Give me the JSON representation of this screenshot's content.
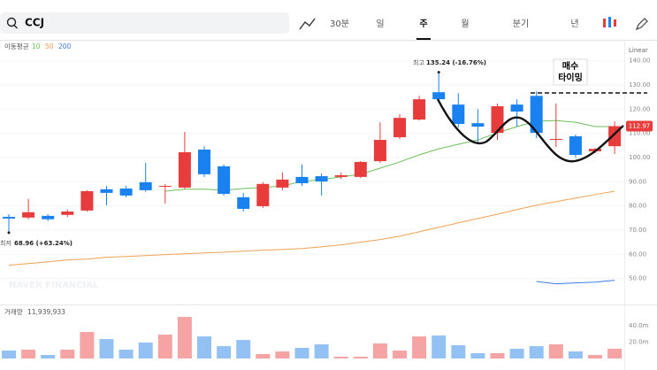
{
  "toolbar": {
    "search": "CCJ",
    "periods": [
      "30분",
      "일",
      "주",
      "월",
      "분기",
      "년"
    ],
    "selected": 2,
    "scale": "Linear"
  },
  "chart_data": [
    {
      "type": "candlestick",
      "legend_title": "이동평균",
      "watermark": "NAVER FINANCIAL",
      "up_color": "#e83c3c",
      "down_color": "#1a82f0",
      "open": [
        75.5,
        75.2,
        75.9,
        76.3,
        78.1,
        86.9,
        87.2,
        89.8,
        88.0,
        87.6,
        103.3,
        96.4,
        83.6,
        79.9,
        87.6,
        92.0,
        92.3,
        92.0,
        92.0,
        98.5,
        108.4,
        115.7,
        127.0,
        121.9,
        114.2,
        110.2,
        121.9,
        125.5,
        107.3,
        108.8,
        102.6,
        104.7
      ],
      "high": [
        76.6,
        82.8,
        76.6,
        78.5,
        86.5,
        88.3,
        88.3,
        97.8,
        89.1,
        110.6,
        104.7,
        97.1,
        85.4,
        89.8,
        93.8,
        97.1,
        93.4,
        93.8,
        98.5,
        114.6,
        117.9,
        125.5,
        135.24,
        126.6,
        120.0,
        122.3,
        124.1,
        127.4,
        122.3,
        109.5,
        104.0,
        114.9
      ],
      "low": [
        68.96,
        74.5,
        73.7,
        75.5,
        77.7,
        80.3,
        83.6,
        85.8,
        81.0,
        86.9,
        92.0,
        84.3,
        77.7,
        79.2,
        86.5,
        88.3,
        84.3,
        91.2,
        91.6,
        97.8,
        107.7,
        115.3,
        122.6,
        112.4,
        105.8,
        107.3,
        112.8,
        108.0,
        104.4,
        100.0,
        101.8,
        101.5
      ],
      "close": [
        74.8,
        77.4,
        74.5,
        77.7,
        86.1,
        85.4,
        84.3,
        86.5,
        88.3,
        102.2,
        93.1,
        85.0,
        78.8,
        89.1,
        90.9,
        89.4,
        90.1,
        92.7,
        98.2,
        107.3,
        116.4,
        124.1,
        124.1,
        113.9,
        112.8,
        121.2,
        119.0,
        110.2,
        107.7,
        101.1,
        103.6,
        112.97
      ],
      "last_price_label": "112.97",
      "series": [
        {
          "name": "10",
          "color": "#6cbf5a",
          "values": [
            null,
            null,
            null,
            null,
            null,
            null,
            null,
            null,
            86.1,
            86.9,
            86.9,
            86.5,
            87.2,
            87.6,
            88.3,
            90.1,
            90.9,
            92.0,
            93.1,
            95.6,
            98.2,
            101.1,
            103.6,
            105.5,
            107.3,
            110.2,
            112.8,
            115.0,
            115.3,
            114.6,
            112.8,
            112.8
          ]
        },
        {
          "name": "50",
          "color": "#f0a055",
          "values": [
            55.5,
            56.2,
            56.9,
            57.7,
            58.0,
            58.8,
            59.1,
            59.5,
            59.9,
            60.2,
            60.6,
            60.9,
            61.3,
            61.7,
            62.0,
            62.4,
            63.1,
            63.9,
            65.0,
            66.1,
            67.5,
            69.3,
            71.2,
            73.0,
            74.8,
            76.6,
            78.5,
            80.3,
            81.8,
            83.2,
            84.7,
            86.1
          ]
        },
        {
          "name": "200",
          "color": "#3d7be0",
          "values": [
            null,
            null,
            null,
            null,
            null,
            null,
            null,
            null,
            null,
            null,
            null,
            null,
            null,
            null,
            null,
            null,
            null,
            null,
            null,
            null,
            null,
            null,
            null,
            null,
            null,
            null,
            null,
            48.8,
            47.8,
            48.2,
            48.5,
            49.3
          ]
        }
      ],
      "ylim": [
        40,
        145
      ],
      "yticks": [
        {
          "value": 140,
          "label": "140.00"
        },
        {
          "value": 130,
          "label": "130.00"
        },
        {
          "value": 120,
          "label": "120.00"
        },
        {
          "value": 110,
          "label": "110.00"
        },
        {
          "value": 100,
          "label": "100.00"
        },
        {
          "value": 90,
          "label": "90.00"
        },
        {
          "value": 80,
          "label": "80.00"
        },
        {
          "value": 70,
          "label": "70.00"
        },
        {
          "value": 60,
          "label": "60.00"
        },
        {
          "value": 50,
          "label": "50.00"
        }
      ],
      "annotations": {
        "high": "최고",
        "high_label": "135.24 (-16.76%)",
        "low": "최저",
        "low_label": "68.96 (+63.24%)",
        "note": [
          "매수",
          "타이밍"
        ]
      },
      "grid": true
    },
    {
      "type": "volume",
      "title": "거래량",
      "up_color": "#f5a3a3",
      "down_color": "#93c1f3",
      "values": [
        9700000,
        10800000,
        4300000,
        10800000,
        32400000,
        23800000,
        10800000,
        19500000,
        29200000,
        50800000,
        27000000,
        15100000,
        22700000,
        5400000,
        8600000,
        13000000,
        17300000,
        2200000,
        2200000,
        18400000,
        9700000,
        27000000,
        28100000,
        16200000,
        6500000,
        6500000,
        11900000,
        15100000,
        17300000,
        8600000,
        4300000,
        11939933
      ],
      "last_label": "11,939,933",
      "ylim": [
        0,
        65000000
      ],
      "yticks": [
        {
          "value": 40000000,
          "label": "40.0m"
        },
        {
          "value": 20000000,
          "label": "20.0m"
        }
      ]
    }
  ]
}
